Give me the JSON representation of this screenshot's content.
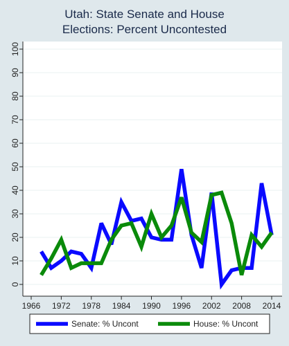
{
  "chart_data": {
    "type": "line",
    "title_lines": [
      "Utah: State Senate and House",
      "Elections: Percent Uncontested"
    ],
    "xlabel": "",
    "ylabel": "",
    "xlim": [
      1966,
      2014
    ],
    "ylim": [
      0,
      100
    ],
    "x_ticks": [
      "1966",
      "1972",
      "1978",
      "1984",
      "1990",
      "1996",
      "2002",
      "2008",
      "2014"
    ],
    "y_ticks": [
      "0",
      "10",
      "20",
      "30",
      "40",
      "50",
      "60",
      "70",
      "80",
      "90",
      "100"
    ],
    "grid": true,
    "legend_position": "bottom",
    "series": [
      {
        "name": "Senate: % Uncont",
        "color": "#0a0aff",
        "x": [
          1968,
          1970,
          1972,
          1974,
          1976,
          1978,
          1980,
          1982,
          1984,
          1986,
          1988,
          1990,
          1992,
          1994,
          1996,
          1998,
          2000,
          2002,
          2004,
          2006,
          2008,
          2010,
          2012,
          2014
        ],
        "y": [
          14,
          7,
          10,
          14,
          13,
          7,
          26,
          17,
          35,
          27,
          28,
          20,
          19,
          19,
          49,
          21,
          7,
          39,
          0,
          6,
          7,
          7,
          43,
          21
        ]
      },
      {
        "name": "House: % Uncont",
        "color": "#0a8a0a",
        "x": [
          1968,
          1970,
          1972,
          1974,
          1976,
          1978,
          1980,
          1982,
          1984,
          1986,
          1988,
          1990,
          1992,
          1994,
          1996,
          1998,
          2000,
          2002,
          2004,
          2006,
          2008,
          2010,
          2012,
          2014
        ],
        "y": [
          4,
          11,
          19,
          7,
          9,
          9,
          9,
          19,
          25,
          26,
          16,
          30,
          20,
          25,
          37,
          22,
          18,
          38,
          39,
          26,
          4,
          21,
          16,
          22
        ]
      }
    ]
  }
}
